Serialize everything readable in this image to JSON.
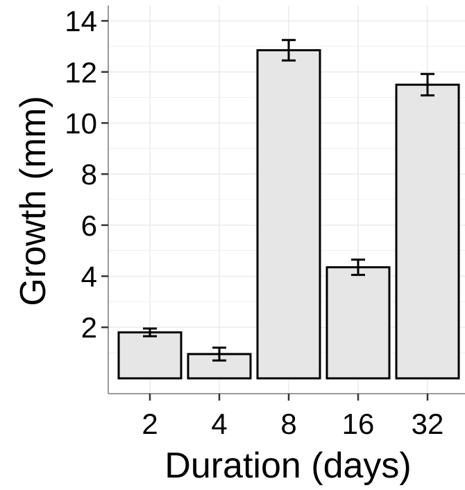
{
  "chart_data": {
    "type": "bar",
    "xlabel": "Duration (days)",
    "ylabel": "Growth (mm)",
    "categories": [
      "2",
      "4",
      "8",
      "16",
      "32"
    ],
    "values": [
      1.8,
      0.95,
      12.85,
      4.35,
      11.5
    ],
    "error": [
      0.15,
      0.25,
      0.4,
      0.3,
      0.42
    ],
    "ylim": [
      -0.6,
      14.6
    ],
    "yticks": [
      2,
      4,
      6,
      8,
      10,
      12,
      14
    ],
    "ytick_labels": [
      "2",
      "4",
      "6",
      "8",
      "10",
      "12",
      "14"
    ],
    "grid": true,
    "bar_color": "#e6e6e6",
    "bar_edge_color": "#000000",
    "grid_color": "#ebebeb",
    "panel_border_color": "#999999"
  }
}
